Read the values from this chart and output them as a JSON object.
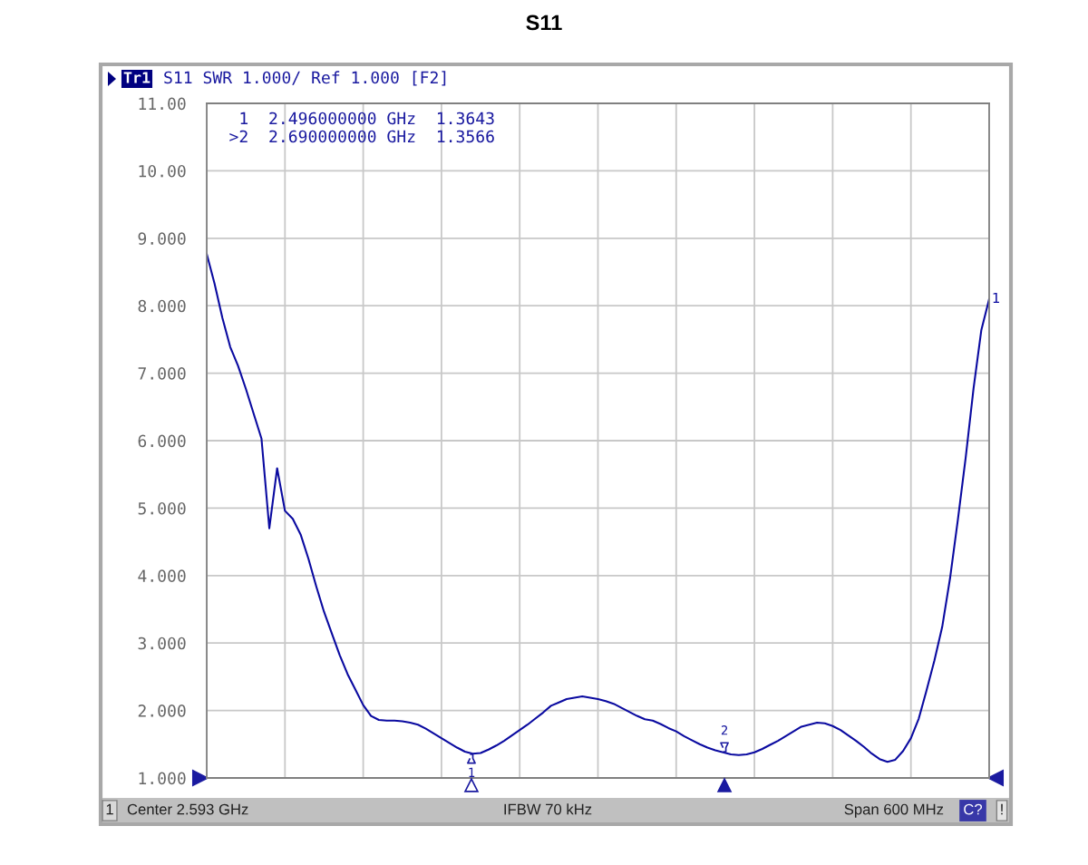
{
  "chart_data": {
    "type": "line",
    "title": "S11",
    "categories": [
      null,
      null,
      null,
      null,
      null,
      null,
      null,
      null,
      null,
      null,
      null,
      null,
      null,
      null,
      null,
      null,
      null,
      null,
      null,
      null,
      null,
      null,
      null,
      null,
      null,
      null,
      null,
      null,
      null,
      null,
      null,
      null,
      null,
      null,
      null,
      null,
      null,
      null,
      null,
      null,
      null,
      null,
      null,
      null,
      null,
      null,
      null,
      null,
      null,
      null,
      null,
      null,
      null,
      null,
      null,
      null,
      null,
      null,
      null,
      null,
      null,
      null,
      null,
      null,
      null,
      null,
      null,
      null,
      null,
      null,
      null,
      null,
      null,
      null,
      null,
      null,
      null,
      null,
      null,
      null,
      null,
      null,
      null,
      null,
      null,
      null,
      null,
      null,
      null,
      null,
      null,
      null,
      null,
      null,
      null,
      null,
      null,
      null,
      null,
      null,
      null
    ],
    "series": [
      {
        "name": "1",
        "color": "#0a0aa0",
        "values": [
          8.77,
          8.33,
          7.82,
          7.39,
          7.11,
          6.77,
          6.4,
          6.03,
          4.7,
          5.59,
          4.96,
          4.84,
          4.61,
          4.25,
          3.84,
          3.46,
          3.14,
          2.82,
          2.54,
          2.31,
          2.08,
          1.92,
          1.86,
          1.85,
          1.85,
          1.84,
          1.82,
          1.79,
          1.73,
          1.66,
          1.59,
          1.52,
          1.45,
          1.39,
          1.36,
          1.37,
          1.42,
          1.48,
          1.55,
          1.63,
          1.71,
          1.79,
          1.88,
          1.97,
          2.07,
          2.12,
          2.17,
          2.19,
          2.21,
          2.19,
          2.17,
          2.14,
          2.1,
          2.04,
          1.98,
          1.92,
          1.87,
          1.85,
          1.8,
          1.74,
          1.69,
          1.62,
          1.56,
          1.5,
          1.45,
          1.41,
          1.38,
          1.35,
          1.34,
          1.35,
          1.38,
          1.43,
          1.49,
          1.55,
          1.62,
          1.69,
          1.76,
          1.79,
          1.82,
          1.81,
          1.77,
          1.71,
          1.63,
          1.55,
          1.46,
          1.36,
          1.28,
          1.24,
          1.27,
          1.4,
          1.59,
          1.88,
          2.3,
          2.74,
          3.24,
          3.96,
          4.83,
          5.75,
          6.77,
          7.64,
          8.1
        ]
      }
    ],
    "ylim": [
      1,
      11
    ],
    "yticks": [
      {
        "value": 1,
        "label": "1.000"
      },
      {
        "value": 2,
        "label": "2.000"
      },
      {
        "value": 3,
        "label": "3.000"
      },
      {
        "value": 4,
        "label": "4.000"
      },
      {
        "value": 5,
        "label": "5.000"
      },
      {
        "value": 6,
        "label": "6.000"
      },
      {
        "value": 7,
        "label": "7.000"
      },
      {
        "value": 8,
        "label": "8.000"
      },
      {
        "value": 9,
        "label": "9.000"
      },
      {
        "value": 10,
        "label": "10.00"
      },
      {
        "value": 11,
        "label": "11.00"
      }
    ],
    "tick_labels": "y",
    "grid": true,
    "line_style": "solid",
    "ref_lines": [
      {
        "axis": "y",
        "value": 1
      }
    ],
    "annotations": [
      "Tr1",
      "S11 SWR 1.000/ Ref 1.000 [F2]",
      "1  2.496000000 GHz  1.3643",
      ">2  2.690000000 GHz  1.3566",
      "1",
      "Center 2.593 GHz",
      "IFBW 70 kHz",
      "Span 600 MHz",
      "C?",
      "!",
      "1",
      "2"
    ]
  }
}
